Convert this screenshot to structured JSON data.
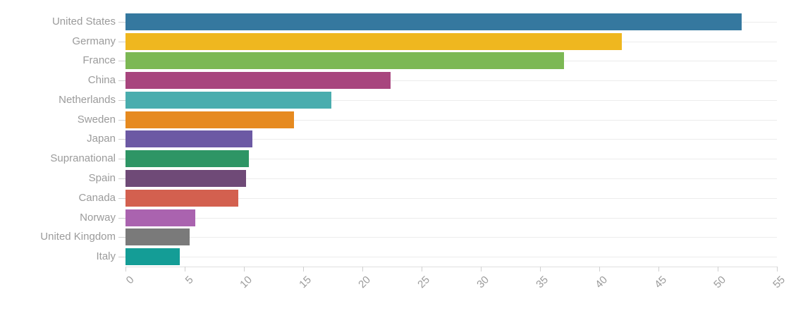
{
  "chart_data": {
    "type": "bar",
    "orientation": "horizontal",
    "title": "",
    "xlabel": "",
    "ylabel": "",
    "categories": [
      "United States",
      "Germany",
      "France",
      "China",
      "Netherlands",
      "Sweden",
      "Japan",
      "Supranational",
      "Spain",
      "Canada",
      "Norway",
      "United Kingdom",
      "Italy"
    ],
    "values": [
      52.0,
      41.9,
      37.0,
      22.4,
      17.4,
      14.2,
      10.7,
      10.4,
      10.2,
      9.5,
      5.9,
      5.4,
      4.6
    ],
    "bar_colors": [
      "#35789f",
      "#efb71f",
      "#7cb854",
      "#a8457e",
      "#4aadae",
      "#e68a20",
      "#6c59a4",
      "#2e9565",
      "#6f4a77",
      "#d3604f",
      "#aa63af",
      "#7a7a7a",
      "#149d96"
    ],
    "xlim": [
      0,
      55
    ],
    "xticks": [
      0,
      5,
      10,
      15,
      20,
      25,
      30,
      35,
      40,
      45,
      50,
      55
    ],
    "xtick_label_rotation": -45,
    "grid": "horizontal gridline per category, no vertical gridlines",
    "legend": "none"
  },
  "styles": {
    "background": "#ffffff",
    "label_color": "#9b9b9b",
    "grid_color": "#ececec",
    "axis_line_color": "#e0e0e0",
    "tick_color": "#cfcfcf"
  }
}
